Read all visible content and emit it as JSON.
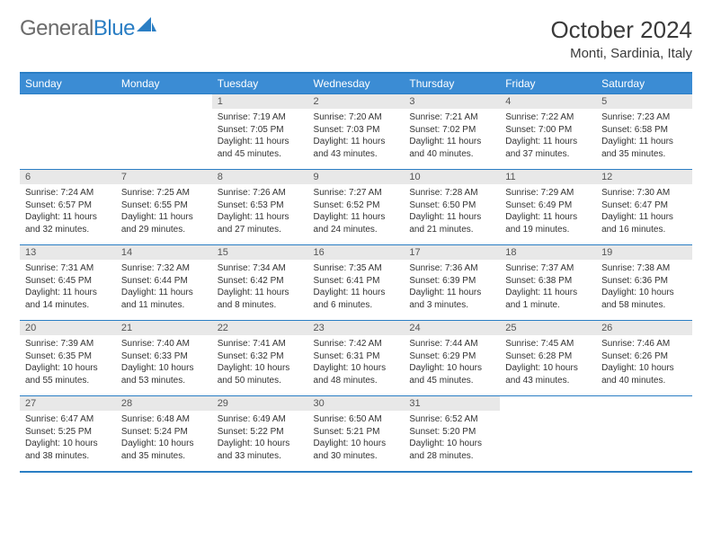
{
  "brand": {
    "part1": "General",
    "part2": "Blue"
  },
  "title": "October 2024",
  "location": "Monti, Sardinia, Italy",
  "colors": {
    "brandBlue": "#2a7ec4",
    "headerBg": "#3b8cd4",
    "dayBarBg": "#e8e8e8",
    "text": "#333333",
    "bg": "#ffffff"
  },
  "dayNames": [
    "Sunday",
    "Monday",
    "Tuesday",
    "Wednesday",
    "Thursday",
    "Friday",
    "Saturday"
  ],
  "weeks": [
    [
      null,
      null,
      {
        "n": "1",
        "sr": "7:19 AM",
        "ss": "7:05 PM",
        "dl": "11 hours and 45 minutes."
      },
      {
        "n": "2",
        "sr": "7:20 AM",
        "ss": "7:03 PM",
        "dl": "11 hours and 43 minutes."
      },
      {
        "n": "3",
        "sr": "7:21 AM",
        "ss": "7:02 PM",
        "dl": "11 hours and 40 minutes."
      },
      {
        "n": "4",
        "sr": "7:22 AM",
        "ss": "7:00 PM",
        "dl": "11 hours and 37 minutes."
      },
      {
        "n": "5",
        "sr": "7:23 AM",
        "ss": "6:58 PM",
        "dl": "11 hours and 35 minutes."
      }
    ],
    [
      {
        "n": "6",
        "sr": "7:24 AM",
        "ss": "6:57 PM",
        "dl": "11 hours and 32 minutes."
      },
      {
        "n": "7",
        "sr": "7:25 AM",
        "ss": "6:55 PM",
        "dl": "11 hours and 29 minutes."
      },
      {
        "n": "8",
        "sr": "7:26 AM",
        "ss": "6:53 PM",
        "dl": "11 hours and 27 minutes."
      },
      {
        "n": "9",
        "sr": "7:27 AM",
        "ss": "6:52 PM",
        "dl": "11 hours and 24 minutes."
      },
      {
        "n": "10",
        "sr": "7:28 AM",
        "ss": "6:50 PM",
        "dl": "11 hours and 21 minutes."
      },
      {
        "n": "11",
        "sr": "7:29 AM",
        "ss": "6:49 PM",
        "dl": "11 hours and 19 minutes."
      },
      {
        "n": "12",
        "sr": "7:30 AM",
        "ss": "6:47 PM",
        "dl": "11 hours and 16 minutes."
      }
    ],
    [
      {
        "n": "13",
        "sr": "7:31 AM",
        "ss": "6:45 PM",
        "dl": "11 hours and 14 minutes."
      },
      {
        "n": "14",
        "sr": "7:32 AM",
        "ss": "6:44 PM",
        "dl": "11 hours and 11 minutes."
      },
      {
        "n": "15",
        "sr": "7:34 AM",
        "ss": "6:42 PM",
        "dl": "11 hours and 8 minutes."
      },
      {
        "n": "16",
        "sr": "7:35 AM",
        "ss": "6:41 PM",
        "dl": "11 hours and 6 minutes."
      },
      {
        "n": "17",
        "sr": "7:36 AM",
        "ss": "6:39 PM",
        "dl": "11 hours and 3 minutes."
      },
      {
        "n": "18",
        "sr": "7:37 AM",
        "ss": "6:38 PM",
        "dl": "11 hours and 1 minute."
      },
      {
        "n": "19",
        "sr": "7:38 AM",
        "ss": "6:36 PM",
        "dl": "10 hours and 58 minutes."
      }
    ],
    [
      {
        "n": "20",
        "sr": "7:39 AM",
        "ss": "6:35 PM",
        "dl": "10 hours and 55 minutes."
      },
      {
        "n": "21",
        "sr": "7:40 AM",
        "ss": "6:33 PM",
        "dl": "10 hours and 53 minutes."
      },
      {
        "n": "22",
        "sr": "7:41 AM",
        "ss": "6:32 PM",
        "dl": "10 hours and 50 minutes."
      },
      {
        "n": "23",
        "sr": "7:42 AM",
        "ss": "6:31 PM",
        "dl": "10 hours and 48 minutes."
      },
      {
        "n": "24",
        "sr": "7:44 AM",
        "ss": "6:29 PM",
        "dl": "10 hours and 45 minutes."
      },
      {
        "n": "25",
        "sr": "7:45 AM",
        "ss": "6:28 PM",
        "dl": "10 hours and 43 minutes."
      },
      {
        "n": "26",
        "sr": "7:46 AM",
        "ss": "6:26 PM",
        "dl": "10 hours and 40 minutes."
      }
    ],
    [
      {
        "n": "27",
        "sr": "6:47 AM",
        "ss": "5:25 PM",
        "dl": "10 hours and 38 minutes."
      },
      {
        "n": "28",
        "sr": "6:48 AM",
        "ss": "5:24 PM",
        "dl": "10 hours and 35 minutes."
      },
      {
        "n": "29",
        "sr": "6:49 AM",
        "ss": "5:22 PM",
        "dl": "10 hours and 33 minutes."
      },
      {
        "n": "30",
        "sr": "6:50 AM",
        "ss": "5:21 PM",
        "dl": "10 hours and 30 minutes."
      },
      {
        "n": "31",
        "sr": "6:52 AM",
        "ss": "5:20 PM",
        "dl": "10 hours and 28 minutes."
      },
      null,
      null
    ]
  ],
  "labels": {
    "sunrise": "Sunrise:",
    "sunset": "Sunset:",
    "daylight": "Daylight:"
  }
}
